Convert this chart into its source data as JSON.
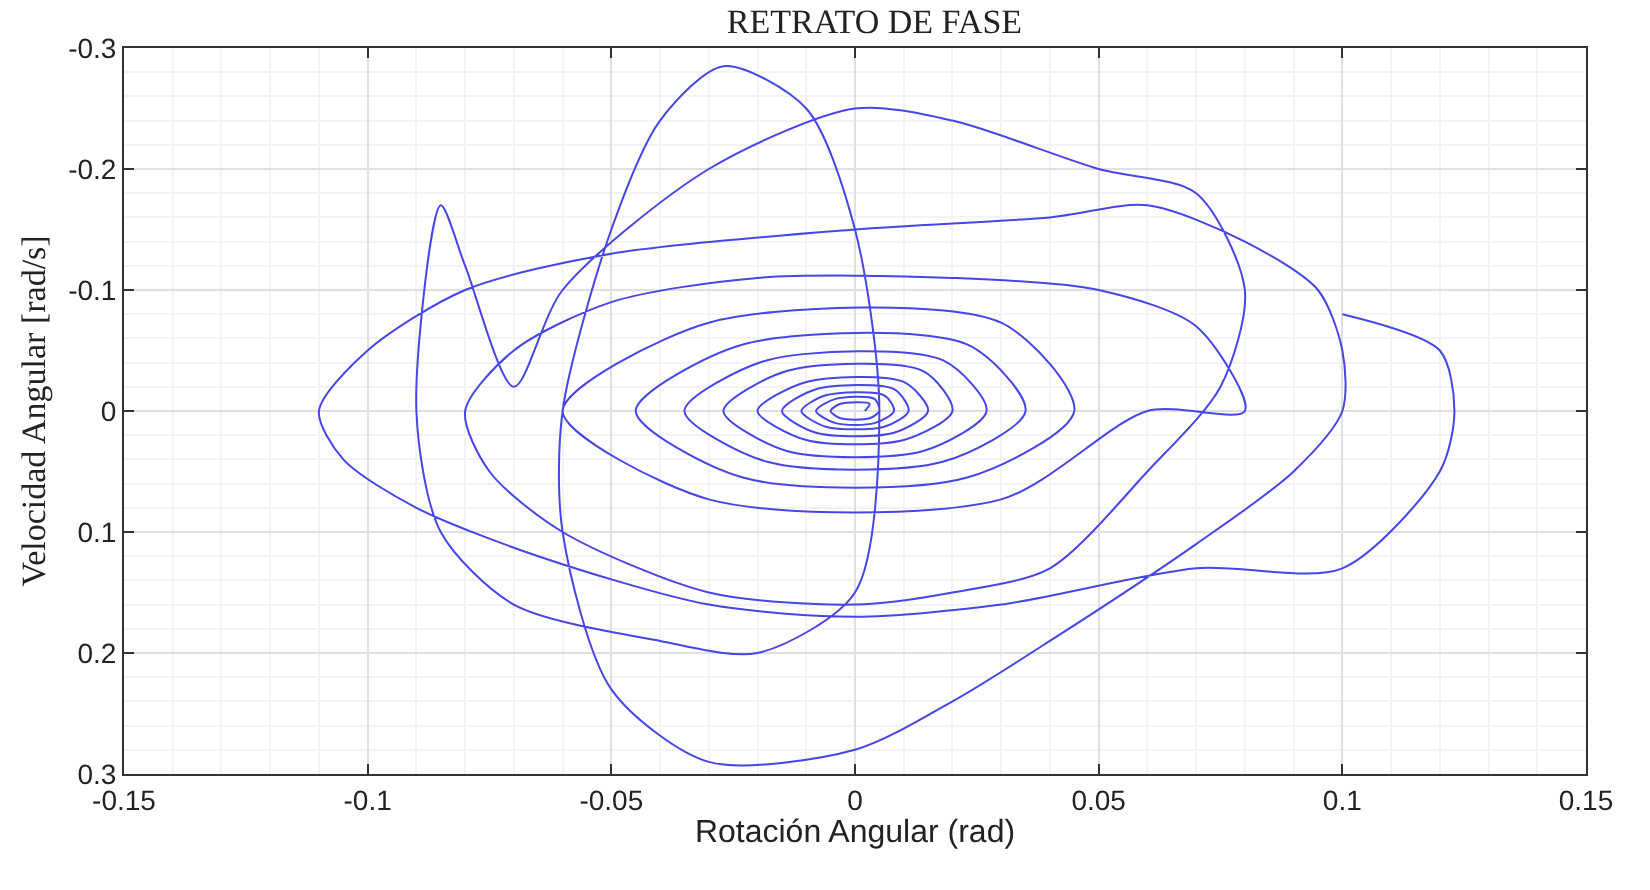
{
  "chart_data": {
    "type": "line",
    "title": "RETRATO DE FASE",
    "xlabel": "Rotación Angular (rad)",
    "ylabel": "Velocidad Angular [rad/s]",
    "xlim": [
      -0.15,
      0.15
    ],
    "xticks": [
      -0.15,
      -0.1,
      -0.05,
      0,
      0.05,
      0.1,
      0.15
    ],
    "ylim": [
      0.3,
      -0.3
    ],
    "yticks": [
      -0.3,
      -0.2,
      -0.1,
      0,
      0.1,
      0.2,
      0.3
    ],
    "grid": true,
    "marker": "none",
    "line_style": "solid",
    "series": [
      {
        "color": "#4646e6",
        "x": [
          0.1,
          0.12,
          0.123,
          0.12,
          0.1,
          0.07,
          0.03,
          0,
          -0.03,
          -0.065,
          -0.09,
          -0.105,
          -0.11,
          -0.1,
          -0.08,
          -0.05,
          0,
          0.04,
          0.06,
          0.08,
          0.095,
          0.1,
          0.1,
          0.09,
          0.07,
          0.04,
          0.02,
          0,
          -0.03,
          -0.05,
          -0.06,
          -0.06,
          -0.05,
          -0.04,
          -0.027,
          -0.01,
          0,
          0.005,
          0,
          -0.02,
          -0.04,
          -0.07,
          -0.085,
          -0.09,
          -0.085,
          -0.08,
          -0.07,
          -0.06,
          -0.03,
          0,
          0.02,
          0.05,
          0.07,
          0.08,
          0.075,
          0.06,
          0.04,
          0.02,
          0,
          -0.03,
          -0.06,
          -0.075,
          -0.08,
          -0.07,
          -0.05,
          -0.02,
          0.02,
          0.05,
          0.07,
          0.08,
          0.06,
          0.03,
          -0.03,
          -0.06,
          -0.03,
          0.03,
          0.045,
          0.023,
          -0.023,
          -0.045,
          -0.023,
          0.023,
          0.035,
          0.018,
          -0.018,
          -0.035,
          -0.018,
          0.018,
          0.027,
          0.014,
          -0.014,
          -0.027,
          -0.014,
          0.014,
          0.02,
          0.01,
          -0.01,
          -0.02,
          -0.01,
          0.01,
          0.015,
          0.008,
          -0.008,
          -0.015,
          -0.008,
          0.008,
          0.011,
          0.006,
          -0.006,
          -0.011,
          -0.006,
          0.006,
          0.008,
          0.004,
          -0.004,
          -0.008,
          -0.004,
          0.004,
          0.005,
          0.003,
          -0.003,
          -0.005,
          -0.003,
          0.003,
          0.002
        ],
        "values": [
          -0.08,
          -0.05,
          0,
          0.05,
          0.13,
          0.13,
          0.16,
          0.17,
          0.16,
          0.12,
          0.08,
          0.04,
          0,
          -0.05,
          -0.1,
          -0.13,
          -0.15,
          -0.16,
          -0.17,
          -0.14,
          -0.1,
          -0.05,
          0,
          0.05,
          0.11,
          0.19,
          0.24,
          0.28,
          0.29,
          0.23,
          0.1,
          0,
          -0.15,
          -0.24,
          -0.285,
          -0.25,
          -0.15,
          0,
          0.15,
          0.2,
          0.19,
          0.16,
          0.1,
          0,
          -0.17,
          -0.12,
          -0.02,
          -0.1,
          -0.2,
          -0.25,
          -0.24,
          -0.2,
          -0.18,
          -0.1,
          -0.02,
          0.05,
          0.13,
          0.15,
          0.16,
          0.15,
          0.1,
          0.05,
          0,
          -0.05,
          -0.09,
          -0.11,
          -0.11,
          -0.1,
          -0.07,
          0,
          0,
          0.073,
          0.073,
          0,
          -0.073,
          -0.073,
          0,
          0.055,
          0.055,
          0,
          -0.055,
          -0.055,
          0,
          0.042,
          0.042,
          0,
          -0.042,
          -0.042,
          0,
          0.033,
          0.033,
          0,
          -0.033,
          -0.033,
          0,
          0.024,
          0.024,
          0,
          -0.024,
          -0.024,
          0,
          0.018,
          0.018,
          0,
          -0.018,
          -0.018,
          0,
          0.013,
          0.013,
          0,
          -0.013,
          -0.013,
          0,
          0.01,
          0.01,
          0,
          -0.01,
          -0.01,
          0,
          0.006,
          0.006,
          0,
          -0.006,
          -0.006,
          0
        ]
      }
    ]
  }
}
